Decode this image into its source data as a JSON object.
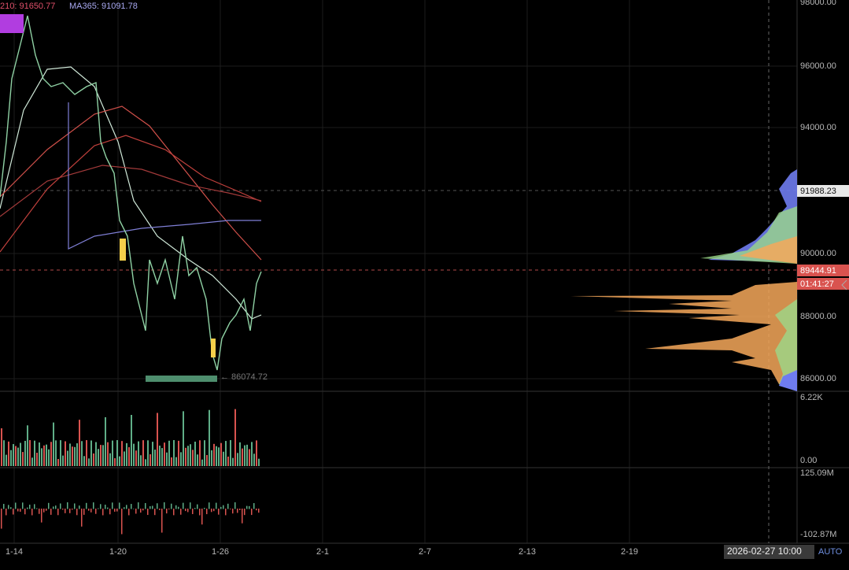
{
  "legend": {
    "ma210": "210: 91650.77",
    "ma365": "MA365: 91091.78"
  },
  "price_axis": [
    "98000.00",
    "96000.00",
    "94000.00",
    "90000.00",
    "88000.00",
    "86000.00"
  ],
  "price_tags": {
    "high": "91988.23",
    "last": "89444.91",
    "countdown": "01:41:27"
  },
  "low_label": "← 86074.72",
  "volume_axis": [
    "6.22K",
    "0.00"
  ],
  "indicator_axis": [
    "125.09M",
    "-102.87M"
  ],
  "date_axis": [
    "1-14",
    "1-20",
    "1-26",
    "2-1",
    "2-7",
    "2-13",
    "2-19"
  ],
  "crosshair_time": "2026-02-27 10:00",
  "scale_mode": "AUTO"
}
